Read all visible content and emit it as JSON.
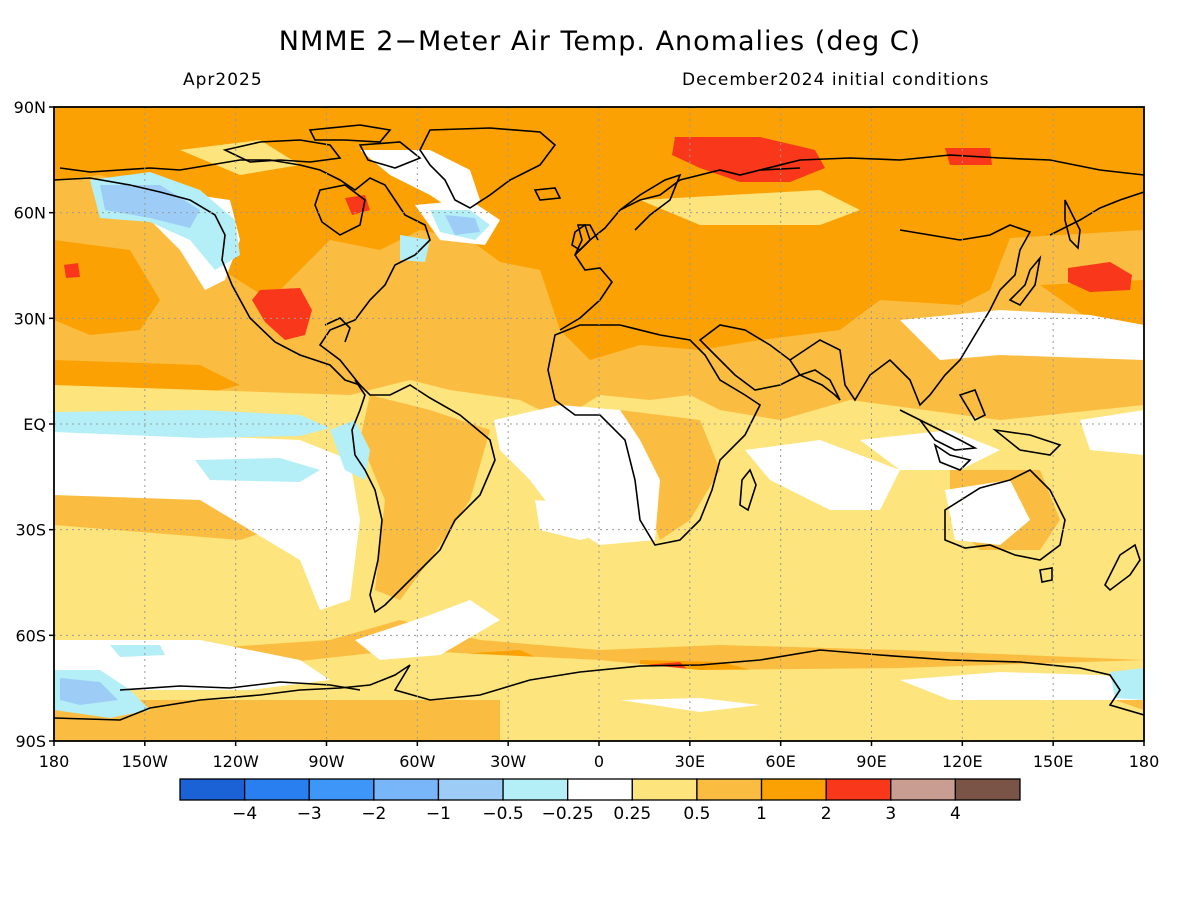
{
  "title": "NMME 2−Meter Air Temp. Anomalies (deg C)",
  "valid_month": "Apr2025",
  "initial_conditions": "December2024 initial conditions",
  "map": {
    "projection": "equirectangular",
    "lon_range": [
      -180,
      180
    ],
    "lat_range": [
      -90,
      90
    ],
    "grid": true,
    "lat_ticks": [
      {
        "lat": 90,
        "label": "90N"
      },
      {
        "lat": 60,
        "label": "60N"
      },
      {
        "lat": 30,
        "label": "30N"
      },
      {
        "lat": 0,
        "label": "EQ"
      },
      {
        "lat": -30,
        "label": "30S"
      },
      {
        "lat": -60,
        "label": "60S"
      },
      {
        "lat": -90,
        "label": "90S"
      }
    ],
    "lon_ticks": [
      {
        "lon": -180,
        "label": "180"
      },
      {
        "lon": -150,
        "label": "150W"
      },
      {
        "lon": -120,
        "label": "120W"
      },
      {
        "lon": -90,
        "label": "90W"
      },
      {
        "lon": -60,
        "label": "60W"
      },
      {
        "lon": -30,
        "label": "30W"
      },
      {
        "lon": 0,
        "label": "0"
      },
      {
        "lon": 30,
        "label": "30E"
      },
      {
        "lon": 60,
        "label": "60E"
      },
      {
        "lon": 90,
        "label": "90E"
      },
      {
        "lon": 120,
        "label": "120E"
      },
      {
        "lon": 150,
        "label": "150E"
      },
      {
        "lon": 180,
        "label": "180"
      }
    ]
  },
  "colorbar": {
    "colors": [
      "#1a62d6",
      "#2a7ff0",
      "#3d96f8",
      "#79b6f9",
      "#9dcdf7",
      "#b4eef6",
      "#ffffff",
      "#fde47c",
      "#fbbd41",
      "#fba103",
      "#f9371a",
      "#c99d91",
      "#7b5448"
    ],
    "labels": [
      "−4",
      "−3",
      "−2",
      "−1",
      "−0.5",
      "−0.25",
      "0.25",
      "0.5",
      "1",
      "2",
      "3",
      "4"
    ]
  }
}
